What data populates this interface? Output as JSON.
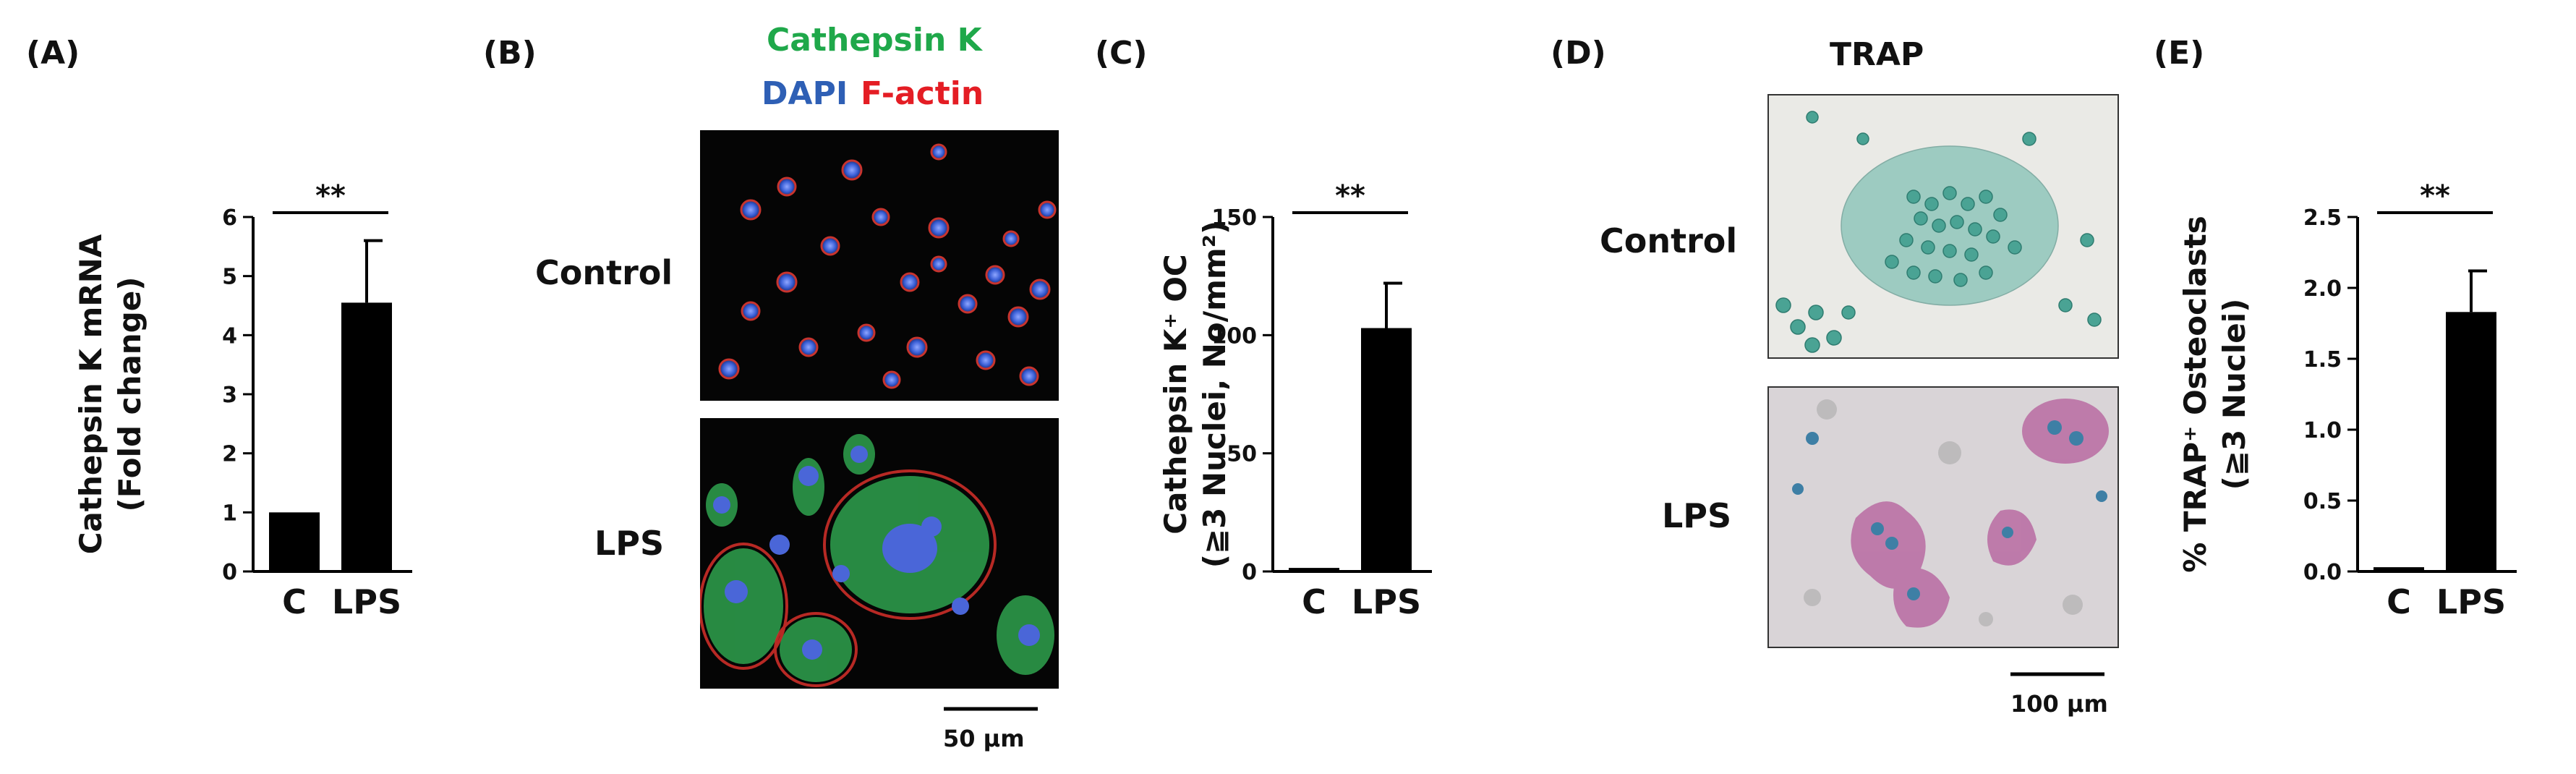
{
  "panels": {
    "A": {
      "letter": "(A)"
    },
    "B": {
      "letter": "(B)",
      "stain_line1": "Cathepsin K",
      "stain_dapi": "DAPI",
      "stain_factin": "F-actin",
      "row_control": "Control",
      "row_lps": "LPS",
      "scale_bar": "50 μm"
    },
    "C": {
      "letter": "(C)"
    },
    "D": {
      "letter": "(D)",
      "title": "TRAP",
      "row_control": "Control",
      "row_lps": "LPS",
      "scale_bar": "100 μm"
    },
    "E": {
      "letter": "(E)"
    }
  },
  "colors": {
    "cathepsin": "#1fa84a",
    "dapi": "#2e5fb5",
    "factin": "#e41d24",
    "bar": "#000000"
  },
  "chart_data": [
    {
      "id": "A",
      "type": "bar",
      "categories": [
        "C",
        "LPS"
      ],
      "values": [
        1.0,
        4.55
      ],
      "errors": [
        0,
        1.05
      ],
      "ylabel_line1": "Cathepsin K mRNA",
      "ylabel_line2": "(Fold change)",
      "ylim": [
        0,
        6
      ],
      "yticks": [
        "0",
        "1",
        "2",
        "3",
        "4",
        "5",
        "6"
      ],
      "significance": "**"
    },
    {
      "id": "C",
      "type": "bar",
      "categories": [
        "C",
        "LPS"
      ],
      "values": [
        1.5,
        103
      ],
      "errors": [
        0,
        19
      ],
      "ylabel_line1": "Cathepsin K⁺ OC",
      "ylabel_line2": "(≧3 Nuclei, No/mm²)",
      "ylim": [
        0,
        150
      ],
      "yticks": [
        "0",
        "50",
        "100",
        "150"
      ],
      "significance": "**"
    },
    {
      "id": "E",
      "type": "bar",
      "categories": [
        "C",
        "LPS"
      ],
      "values": [
        0.03,
        1.83
      ],
      "errors": [
        0,
        0.29
      ],
      "ylabel_line1": "% TRAP⁺ Osteoclasts",
      "ylabel_line2": "(≧3 Nuclei)",
      "ylim": [
        0,
        2.5
      ],
      "yticks": [
        "0.0",
        "0.5",
        "1.0",
        "1.5",
        "2.0",
        "2.5"
      ],
      "significance": "**"
    }
  ]
}
